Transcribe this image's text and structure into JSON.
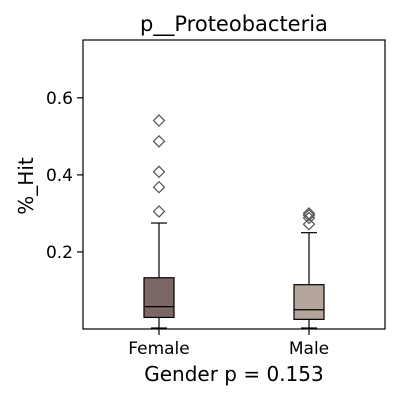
{
  "chart_data": {
    "type": "box",
    "title": "p__Proteobacteria",
    "ylabel": "%_Hit",
    "xlabel": "Gender p = 0.153",
    "ylim": [
      0.0,
      0.75
    ],
    "yticks": [
      0.2,
      0.4,
      0.6
    ],
    "ytick_labels": [
      "0.2",
      "0.4",
      "0.6"
    ],
    "categories": [
      "Female",
      "Male"
    ],
    "boxes": [
      {
        "category": "Female",
        "color": "#7b6763",
        "whisker_low": 0.0,
        "q1": 0.03,
        "median": 0.058,
        "q3": 0.133,
        "whisker_high": 0.275,
        "outliers": [
          0.305,
          0.368,
          0.408,
          0.487,
          0.541
        ]
      },
      {
        "category": "Male",
        "color": "#b4a69d",
        "whisker_low": 0.0,
        "q1": 0.025,
        "median": 0.05,
        "q3": 0.115,
        "whisker_high": 0.25,
        "outliers": [
          0.272,
          0.288,
          0.295,
          0.3
        ]
      }
    ]
  }
}
